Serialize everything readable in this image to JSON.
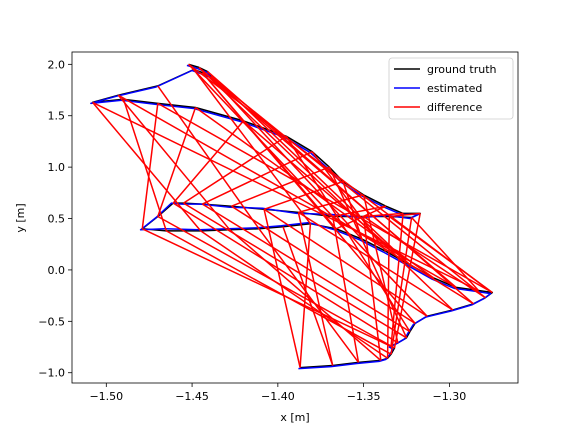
{
  "chart_data": {
    "type": "line",
    "xlabel": "x [m]",
    "ylabel": "y [m]",
    "xlim": [
      -1.52,
      -1.26
    ],
    "ylim": [
      -1.1,
      2.12
    ],
    "x_ticks": [
      -1.5,
      -1.45,
      -1.4,
      -1.35,
      -1.3
    ],
    "x_tick_labels": [
      "−1.50",
      "−1.45",
      "−1.40",
      "−1.35",
      "−1.30"
    ],
    "y_ticks": [
      -1.0,
      -0.5,
      0.0,
      0.5,
      1.0,
      1.5,
      2.0
    ],
    "y_tick_labels": [
      "−1.0",
      "−0.5",
      "0.0",
      "0.5",
      "1.0",
      "1.5",
      "2.0"
    ],
    "legend_position": "top-right",
    "series": [
      {
        "name": "ground truth",
        "color": "#000000",
        "x": [
          -1.452,
          -1.446,
          -1.441,
          -1.439,
          -1.444,
          -1.449,
          -1.47,
          -1.493,
          -1.508,
          -1.49,
          -1.47,
          -1.448,
          -1.42,
          -1.395,
          -1.38,
          -1.37,
          -1.362,
          -1.35,
          -1.337,
          -1.327,
          -1.317,
          -1.322,
          -1.335,
          -1.35,
          -1.368,
          -1.388,
          -1.408,
          -1.427,
          -1.444,
          -1.455,
          -1.461,
          -1.47,
          -1.479,
          -1.465,
          -1.445,
          -1.428,
          -1.411,
          -1.397,
          -1.381,
          -1.366,
          -1.351,
          -1.337,
          -1.323,
          -1.309,
          -1.296,
          -1.283,
          -1.275,
          -1.279,
          -1.286,
          -1.298,
          -1.313,
          -1.32,
          -1.323,
          -1.325,
          -1.33,
          -1.334,
          -1.332,
          -1.334,
          -1.336,
          -1.34,
          -1.353,
          -1.368,
          -1.387
        ],
        "y": [
          2.0,
          1.97,
          1.93,
          1.88,
          1.92,
          1.95,
          1.79,
          1.7,
          1.63,
          1.66,
          1.62,
          1.58,
          1.45,
          1.3,
          1.15,
          1.0,
          0.86,
          0.73,
          0.62,
          0.55,
          0.55,
          0.51,
          0.52,
          0.52,
          0.52,
          0.56,
          0.59,
          0.62,
          0.64,
          0.65,
          0.65,
          0.52,
          0.4,
          0.38,
          0.38,
          0.39,
          0.4,
          0.42,
          0.45,
          0.4,
          0.3,
          0.18,
          0.05,
          -0.08,
          -0.17,
          -0.2,
          -0.22,
          -0.27,
          -0.33,
          -0.39,
          -0.45,
          -0.52,
          -0.6,
          -0.66,
          -0.71,
          -0.74,
          -0.76,
          -0.82,
          -0.86,
          -0.88,
          -0.9,
          -0.93,
          -0.95
        ]
      },
      {
        "name": "estimated",
        "color": "#0000ff",
        "x": [
          -1.453,
          -1.447,
          -1.441,
          -1.439,
          -1.445,
          -1.45,
          -1.471,
          -1.494,
          -1.509,
          -1.491,
          -1.471,
          -1.449,
          -1.421,
          -1.396,
          -1.381,
          -1.371,
          -1.363,
          -1.351,
          -1.338,
          -1.328,
          -1.318,
          -1.323,
          -1.336,
          -1.351,
          -1.369,
          -1.389,
          -1.409,
          -1.428,
          -1.445,
          -1.456,
          -1.462,
          -1.471,
          -1.48,
          -1.466,
          -1.446,
          -1.429,
          -1.412,
          -1.398,
          -1.382,
          -1.367,
          -1.352,
          -1.338,
          -1.324,
          -1.31,
          -1.297,
          -1.284,
          -1.276,
          -1.28,
          -1.287,
          -1.299,
          -1.314,
          -1.321,
          -1.324,
          -1.326,
          -1.331,
          -1.335,
          -1.333,
          -1.335,
          -1.337,
          -1.341,
          -1.354,
          -1.369,
          -1.388
        ],
        "y": [
          1.99,
          1.96,
          1.92,
          1.87,
          1.91,
          1.94,
          1.78,
          1.69,
          1.62,
          1.65,
          1.61,
          1.57,
          1.44,
          1.29,
          1.14,
          0.99,
          0.85,
          0.72,
          0.61,
          0.54,
          0.54,
          0.5,
          0.53,
          0.51,
          0.54,
          0.55,
          0.6,
          0.61,
          0.64,
          0.64,
          0.65,
          0.51,
          0.39,
          0.4,
          0.39,
          0.4,
          0.41,
          0.43,
          0.46,
          0.39,
          0.29,
          0.17,
          0.04,
          -0.09,
          -0.18,
          -0.21,
          -0.23,
          -0.28,
          -0.34,
          -0.4,
          -0.46,
          -0.53,
          -0.61,
          -0.67,
          -0.72,
          -0.75,
          -0.77,
          -0.83,
          -0.87,
          -0.89,
          -0.91,
          -0.94,
          -0.96
        ]
      },
      {
        "name": "difference",
        "color": "#ff0000",
        "segments": [
          [
            [
              -1.452,
              2.0
            ],
            [
              -1.276,
              -0.21
            ]
          ],
          [
            [
              -1.446,
              1.97
            ],
            [
              -1.296,
              -0.17
            ]
          ],
          [
            [
              -1.441,
              1.93
            ],
            [
              -1.323,
              0.05
            ]
          ],
          [
            [
              -1.439,
              1.88
            ],
            [
              -1.351,
              0.3
            ]
          ],
          [
            [
              -1.444,
              1.92
            ],
            [
              -1.366,
              0.4
            ]
          ],
          [
            [
              -1.449,
              1.95
            ],
            [
              -1.381,
              0.45
            ]
          ],
          [
            [
              -1.47,
              1.79
            ],
            [
              -1.411,
              0.4
            ]
          ],
          [
            [
              -1.493,
              1.7
            ],
            [
              -1.428,
              0.39
            ]
          ],
          [
            [
              -1.508,
              1.63
            ],
            [
              -1.445,
              0.38
            ]
          ],
          [
            [
              -1.49,
              1.66
            ],
            [
              -1.465,
              0.38
            ]
          ],
          [
            [
              -1.47,
              1.62
            ],
            [
              -1.479,
              0.4
            ]
          ],
          [
            [
              -1.448,
              1.58
            ],
            [
              -1.47,
              0.52
            ]
          ],
          [
            [
              -1.42,
              1.45
            ],
            [
              -1.461,
              0.65
            ]
          ],
          [
            [
              -1.395,
              1.3
            ],
            [
              -1.455,
              0.65
            ]
          ],
          [
            [
              -1.38,
              1.15
            ],
            [
              -1.444,
              0.64
            ]
          ],
          [
            [
              -1.37,
              1.0
            ],
            [
              -1.427,
              0.62
            ]
          ],
          [
            [
              -1.362,
              0.86
            ],
            [
              -1.408,
              0.59
            ]
          ],
          [
            [
              -1.35,
              0.73
            ],
            [
              -1.388,
              0.56
            ]
          ],
          [
            [
              -1.337,
              0.62
            ],
            [
              -1.368,
              0.52
            ]
          ],
          [
            [
              -1.327,
              0.55
            ],
            [
              -1.35,
              0.52
            ]
          ],
          [
            [
              -1.317,
              0.55
            ],
            [
              -1.335,
              0.52
            ]
          ],
          [
            [
              -1.322,
              0.51
            ],
            [
              -1.283,
              -0.2
            ]
          ],
          [
            [
              -1.335,
              0.52
            ],
            [
              -1.275,
              -0.22
            ]
          ],
          [
            [
              -1.35,
              0.52
            ],
            [
              -1.279,
              -0.27
            ]
          ],
          [
            [
              -1.368,
              0.52
            ],
            [
              -1.286,
              -0.33
            ]
          ],
          [
            [
              -1.388,
              0.56
            ],
            [
              -1.298,
              -0.39
            ]
          ],
          [
            [
              -1.408,
              0.59
            ],
            [
              -1.313,
              -0.45
            ]
          ],
          [
            [
              -1.427,
              0.62
            ],
            [
              -1.32,
              -0.52
            ]
          ],
          [
            [
              -1.444,
              0.64
            ],
            [
              -1.323,
              -0.6
            ]
          ],
          [
            [
              -1.455,
              0.65
            ],
            [
              -1.325,
              -0.66
            ]
          ],
          [
            [
              -1.461,
              0.65
            ],
            [
              -1.33,
              -0.71
            ]
          ],
          [
            [
              -1.47,
              0.52
            ],
            [
              -1.334,
              -0.74
            ]
          ],
          [
            [
              -1.479,
              0.4
            ],
            [
              -1.332,
              -0.76
            ]
          ],
          [
            [
              -1.465,
              0.38
            ],
            [
              -1.334,
              -0.82
            ]
          ],
          [
            [
              -1.445,
              0.38
            ],
            [
              -1.336,
              -0.86
            ]
          ],
          [
            [
              -1.428,
              0.39
            ],
            [
              -1.34,
              -0.88
            ]
          ],
          [
            [
              -1.411,
              0.4
            ],
            [
              -1.353,
              -0.9
            ]
          ],
          [
            [
              -1.397,
              0.42
            ],
            [
              -1.368,
              -0.93
            ]
          ],
          [
            [
              -1.381,
              0.45
            ],
            [
              -1.387,
              -0.95
            ]
          ],
          [
            [
              -1.366,
              0.4
            ],
            [
              -1.337,
              0.62
            ]
          ],
          [
            [
              -1.351,
              0.3
            ],
            [
              -1.362,
              0.86
            ]
          ],
          [
            [
              -1.337,
              0.18
            ],
            [
              -1.38,
              1.15
            ]
          ],
          [
            [
              -1.323,
              0.05
            ],
            [
              -1.42,
              1.45
            ]
          ],
          [
            [
              -1.309,
              -0.08
            ],
            [
              -1.448,
              1.58
            ]
          ],
          [
            [
              -1.296,
              -0.17
            ],
            [
              -1.493,
              1.7
            ]
          ],
          [
            [
              -1.283,
              -0.2
            ],
            [
              -1.508,
              1.63
            ]
          ],
          [
            [
              -1.275,
              -0.22
            ],
            [
              -1.47,
              1.62
            ]
          ],
          [
            [
              -1.279,
              -0.27
            ],
            [
              -1.439,
              1.88
            ]
          ],
          [
            [
              -1.286,
              -0.33
            ],
            [
              -1.441,
              1.93
            ]
          ],
          [
            [
              -1.298,
              -0.39
            ],
            [
              -1.446,
              1.97
            ]
          ],
          [
            [
              -1.313,
              -0.45
            ],
            [
              -1.452,
              2.0
            ]
          ],
          [
            [
              -1.32,
              -0.52
            ],
            [
              -1.444,
              1.92
            ]
          ],
          [
            [
              -1.323,
              -0.6
            ],
            [
              -1.395,
              1.3
            ]
          ],
          [
            [
              -1.325,
              -0.66
            ],
            [
              -1.37,
              1.0
            ]
          ],
          [
            [
              -1.33,
              -0.71
            ],
            [
              -1.35,
              0.73
            ]
          ],
          [
            [
              -1.334,
              -0.74
            ],
            [
              -1.327,
              0.55
            ]
          ],
          [
            [
              -1.332,
              -0.76
            ],
            [
              -1.317,
              0.55
            ]
          ],
          [
            [
              -1.334,
              -0.82
            ],
            [
              -1.322,
              0.51
            ]
          ],
          [
            [
              -1.336,
              -0.86
            ],
            [
              -1.335,
              0.52
            ]
          ],
          [
            [
              -1.34,
              -0.88
            ],
            [
              -1.35,
              0.52
            ]
          ],
          [
            [
              -1.353,
              -0.9
            ],
            [
              -1.368,
              0.52
            ]
          ],
          [
            [
              -1.368,
              -0.93
            ],
            [
              -1.388,
              0.56
            ]
          ],
          [
            [
              -1.387,
              -0.95
            ],
            [
              -1.408,
              0.59
            ]
          ]
        ]
      }
    ]
  }
}
